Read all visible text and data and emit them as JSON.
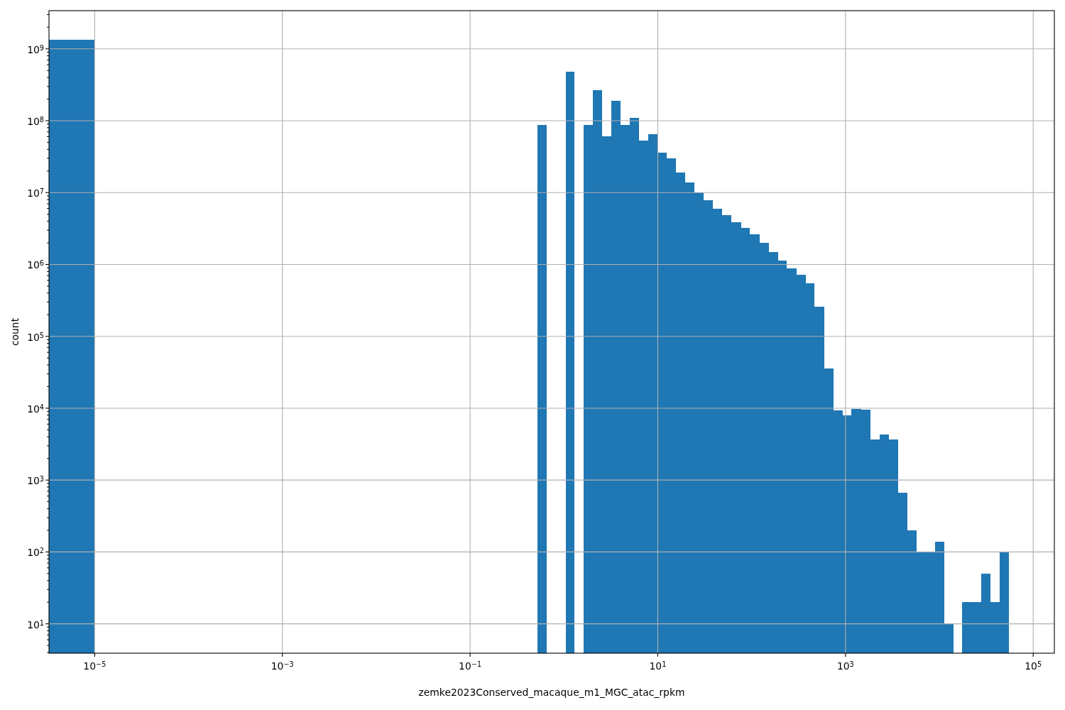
{
  "chart_data": {
    "type": "histogram",
    "xlabel": "zemke2023Conserved_macaque_m1_MGC_atac_rpkm",
    "ylabel": "count",
    "color": "#1f77b4",
    "log": "xy",
    "grid": true,
    "bins": [
      3.26e-06,
      1e-05,
      0.526,
      0.66,
      1.04,
      1.3,
      1.63,
      2.05,
      2.57,
      3.22,
      4.04,
      5.07,
      6.36,
      7.97,
      10,
      12.5,
      15.7,
      19.7,
      24.7,
      31,
      38.9,
      48.8,
      61.2,
      76.8,
      96.3,
      121,
      152,
      190,
      238,
      299,
      375,
      470,
      590,
      740,
      928,
      1160,
      1460,
      1830,
      2300,
      2880,
      3610,
      4530,
      5680,
      7120,
      8940,
      11200,
      14100,
      17600,
      22100,
      27700,
      34800,
      43600,
      54700
    ],
    "values": [
      1340000000.0,
      null,
      88000000.0,
      null,
      485000000.0,
      null,
      88000000.0,
      268000000.0,
      61000000.0,
      191000000.0,
      88000000.0,
      110000000.0,
      53000000.0,
      65000000.0,
      36000000.0,
      30000000.0,
      19000000.0,
      13900000.0,
      10000000.0,
      7800000.0,
      6000000.0,
      4900000.0,
      3900000.0,
      3200000.0,
      2600000.0,
      2000000.0,
      1500000.0,
      1140000.0,
      890000.0,
      720000.0,
      550000.0,
      260000.0,
      36000.0,
      9400,
      7900,
      9800,
      9600,
      3700,
      4300,
      3700,
      670,
      200,
      100,
      100,
      140,
      10,
      null,
      20,
      20,
      50,
      20,
      100
    ],
    "xlim": [
      3.26e-06,
      168000.0
    ],
    "xticks": [
      {
        "value": 1e-05,
        "label": "10$^{−5}$"
      },
      {
        "value": 0.001,
        "label": "10$^{−3}$"
      },
      {
        "value": 0.1,
        "label": "10$^{−1}$"
      },
      {
        "value": 10,
        "label": "10$^{1}$"
      },
      {
        "value": 1000,
        "label": "10$^{3}$"
      },
      {
        "value": 100000,
        "label": "10$^{5}$"
      }
    ],
    "ylim": [
      3.9,
      3400000000.0
    ],
    "yticks": [
      {
        "value": 4,
        "label": null
      },
      {
        "value": 5,
        "label": null
      },
      {
        "value": 6,
        "label": null
      },
      {
        "value": 7,
        "label": null
      },
      {
        "value": 8,
        "label": null
      },
      {
        "value": 9,
        "label": null
      },
      {
        "value": 10,
        "label": "10$^{1}$"
      },
      {
        "value": 20,
        "label": null
      },
      {
        "value": 30,
        "label": null
      },
      {
        "value": 40,
        "label": null
      },
      {
        "value": 50,
        "label": null
      },
      {
        "value": 60,
        "label": null
      },
      {
        "value": 70,
        "label": null
      },
      {
        "value": 80,
        "label": null
      },
      {
        "value": 90,
        "label": null
      },
      {
        "value": 100,
        "label": "10$^{2}$"
      },
      {
        "value": 200,
        "label": null
      },
      {
        "value": 300,
        "label": null
      },
      {
        "value": 400,
        "label": null
      },
      {
        "value": 500,
        "label": null
      },
      {
        "value": 600,
        "label": null
      },
      {
        "value": 700,
        "label": null
      },
      {
        "value": 800,
        "label": null
      },
      {
        "value": 900,
        "label": null
      },
      {
        "value": 1000,
        "label": "10$^{3}$"
      },
      {
        "value": 2000,
        "label": null
      },
      {
        "value": 3000,
        "label": null
      },
      {
        "value": 4000,
        "label": null
      },
      {
        "value": 5000,
        "label": null
      },
      {
        "value": 6000,
        "label": null
      },
      {
        "value": 7000,
        "label": null
      },
      {
        "value": 8000,
        "label": null
      },
      {
        "value": 9000,
        "label": null
      },
      {
        "value": 10000,
        "label": "10$^{4}$"
      },
      {
        "value": 20000,
        "label": null
      },
      {
        "value": 30000,
        "label": null
      },
      {
        "value": 40000,
        "label": null
      },
      {
        "value": 50000,
        "label": null
      },
      {
        "value": 60000,
        "label": null
      },
      {
        "value": 70000,
        "label": null
      },
      {
        "value": 80000,
        "label": null
      },
      {
        "value": 90000,
        "label": null
      },
      {
        "value": 100000,
        "label": "10$^{5}$"
      },
      {
        "value": 200000.0,
        "label": null
      },
      {
        "value": 300000.0,
        "label": null
      },
      {
        "value": 400000.0,
        "label": null
      },
      {
        "value": 500000.0,
        "label": null
      },
      {
        "value": 600000.0,
        "label": null
      },
      {
        "value": 700000.0,
        "label": null
      },
      {
        "value": 800000.0,
        "label": null
      },
      {
        "value": 900000.0,
        "label": null
      },
      {
        "value": 1000000.0,
        "label": "10$^{6}$"
      },
      {
        "value": 2000000.0,
        "label": null
      },
      {
        "value": 3000000.0,
        "label": null
      },
      {
        "value": 4000000.0,
        "label": null
      },
      {
        "value": 5000000.0,
        "label": null
      },
      {
        "value": 6000000.0,
        "label": null
      },
      {
        "value": 7000000.0,
        "label": null
      },
      {
        "value": 8000000.0,
        "label": null
      },
      {
        "value": 9000000.0,
        "label": null
      },
      {
        "value": 10000000.0,
        "label": "10$^{7}$"
      },
      {
        "value": 20000000.0,
        "label": null
      },
      {
        "value": 30000000.0,
        "label": null
      },
      {
        "value": 40000000.0,
        "label": null
      },
      {
        "value": 50000000.0,
        "label": null
      },
      {
        "value": 60000000.0,
        "label": null
      },
      {
        "value": 70000000.0,
        "label": null
      },
      {
        "value": 80000000.0,
        "label": null
      },
      {
        "value": 90000000.0,
        "label": null
      },
      {
        "value": 100000000.0,
        "label": "10$^{8}$"
      },
      {
        "value": 200000000.0,
        "label": null
      },
      {
        "value": 300000000.0,
        "label": null
      },
      {
        "value": 400000000.0,
        "label": null
      },
      {
        "value": 500000000.0,
        "label": null
      },
      {
        "value": 600000000.0,
        "label": null
      },
      {
        "value": 700000000.0,
        "label": null
      },
      {
        "value": 800000000.0,
        "label": null
      },
      {
        "value": 900000000.0,
        "label": null
      },
      {
        "value": 1000000000.0,
        "label": "10$^{9}$"
      },
      {
        "value": 2000000000.0,
        "label": null
      },
      {
        "value": 3000000000.0,
        "label": null
      }
    ]
  }
}
